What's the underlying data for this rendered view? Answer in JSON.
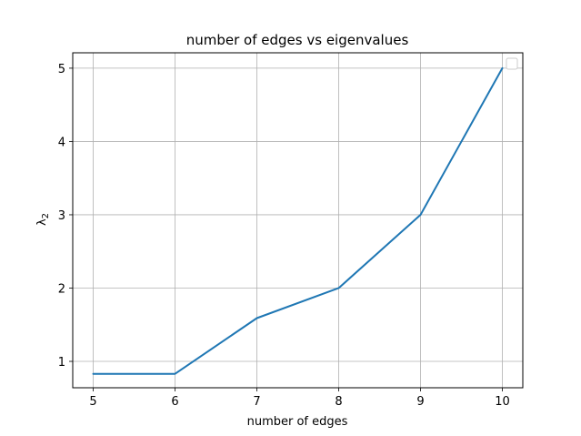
{
  "chart_data": {
    "type": "line",
    "title": "number of edges vs eigenvalues",
    "xlabel": "number of edges",
    "ylabel_base": "λ",
    "ylabel_sub": "2",
    "x": [
      5,
      6,
      7,
      8,
      9,
      10
    ],
    "series": [
      {
        "values": [
          0.83,
          0.83,
          1.59,
          2.0,
          3.0,
          5.0
        ],
        "color": "#1f77b4"
      }
    ],
    "xticks": [
      5,
      6,
      7,
      8,
      9,
      10
    ],
    "yticks": [
      1,
      2,
      3,
      4,
      5
    ],
    "xlim": [
      4.75,
      10.25
    ],
    "ylim": [
      0.64,
      5.21
    ],
    "grid": true,
    "legend": "top-right",
    "legend_entries": []
  }
}
